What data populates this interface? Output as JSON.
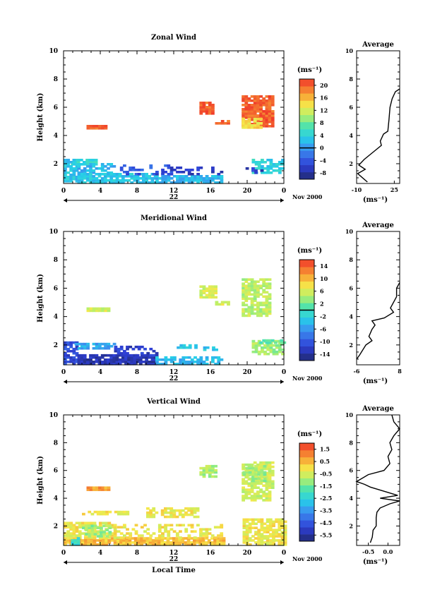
{
  "chart_data": [
    {
      "type": "heatmap",
      "title": "Zonal Wind",
      "ylabel": "Height (km)",
      "xlabel": "",
      "x_ticks": [
        "0",
        "4",
        "8",
        "12",
        "16",
        "20",
        "0"
      ],
      "y_ticks": [
        "2",
        "4",
        "6",
        "8",
        "10"
      ],
      "xlim": [
        0,
        24
      ],
      "ylim": [
        0.6,
        10
      ],
      "date_label": "22",
      "date_suffix": "Nov 2000",
      "colorbar": {
        "unit": "(ms⁻¹)",
        "ticks": [
          "20",
          "16",
          "12",
          "8",
          "4",
          "0",
          "-4",
          "-8"
        ],
        "min": -10,
        "max": 22,
        "contour": 0
      },
      "cells": [
        {
          "t0": 0.8,
          "t1": 3.6,
          "h0": 1.9,
          "h1": 2.3,
          "v": 5,
          "dens": 0.7
        },
        {
          "t0": 0.0,
          "t1": 1.5,
          "h0": 0.7,
          "h1": 2.2,
          "v": 3,
          "dens": 0.8
        },
        {
          "t0": 1.5,
          "t1": 5.5,
          "h0": 1.3,
          "h1": 1.9,
          "v": 2,
          "dens": 0.6
        },
        {
          "t0": 1.5,
          "t1": 10.0,
          "h0": 0.6,
          "h1": 1.3,
          "v": 3,
          "dens": 0.85
        },
        {
          "t0": 5.5,
          "t1": 12.0,
          "h0": 1.2,
          "h1": 1.8,
          "v": -4,
          "dens": 0.25
        },
        {
          "t0": 10.0,
          "t1": 17.2,
          "h0": 0.6,
          "h1": 1.2,
          "v": 2,
          "dens": 0.8
        },
        {
          "t0": 10.0,
          "t1": 17.2,
          "h0": 1.2,
          "h1": 1.7,
          "v": -6,
          "dens": 0.3
        },
        {
          "t0": 2.5,
          "t1": 4.6,
          "h0": 4.45,
          "h1": 4.75,
          "v": 20,
          "dens": 1
        },
        {
          "t0": 14.8,
          "t1": 16.3,
          "h0": 5.5,
          "h1": 6.4,
          "v": 20,
          "dens": 0.95
        },
        {
          "t0": 16.5,
          "t1": 17.8,
          "h0": 4.8,
          "h1": 5.1,
          "v": 20,
          "dens": 0.6
        },
        {
          "t0": 19.4,
          "t1": 22.8,
          "h0": 4.6,
          "h1": 6.8,
          "v": 20,
          "dens": 0.9
        },
        {
          "t0": 19.4,
          "t1": 21.5,
          "h0": 4.5,
          "h1": 5.2,
          "v": 14,
          "dens": 0.7
        },
        {
          "t0": 20.5,
          "t1": 24.0,
          "h0": 1.3,
          "h1": 2.2,
          "v": 4,
          "dens": 0.6
        },
        {
          "t0": 19.5,
          "t1": 21.5,
          "h0": 1.3,
          "h1": 1.7,
          "v": -6,
          "dens": 0.4
        }
      ],
      "average_profile": {
        "title": "Average",
        "xlabel": "(ms⁻¹)",
        "x_ticks": [
          "-10",
          "25"
        ],
        "y_ticks": [
          "2",
          "4",
          "6",
          "8",
          "10"
        ],
        "xlim": [
          -10,
          30
        ],
        "ylim": [
          0.6,
          10
        ],
        "points": [
          [
            0,
            0.7
          ],
          [
            -9,
            1.3
          ],
          [
            -2,
            1.6
          ],
          [
            -8,
            1.9
          ],
          [
            -3,
            2.3
          ],
          [
            5,
            2.8
          ],
          [
            13,
            3.3
          ],
          [
            12,
            3.6
          ],
          [
            15,
            4.1
          ],
          [
            19,
            4.3
          ],
          [
            20,
            5.1
          ],
          [
            21,
            6.0
          ],
          [
            23,
            6.6
          ],
          [
            26,
            7.1
          ],
          [
            30,
            7.3
          ]
        ]
      }
    },
    {
      "type": "heatmap",
      "title": "Meridional Wind",
      "ylabel": "Height (km)",
      "xlabel": "",
      "x_ticks": [
        "0",
        "4",
        "8",
        "12",
        "16",
        "20",
        "0"
      ],
      "y_ticks": [
        "2",
        "4",
        "6",
        "8",
        "10"
      ],
      "xlim": [
        0,
        24
      ],
      "ylim": [
        0.6,
        10
      ],
      "date_label": "22",
      "date_suffix": "Nov 2000",
      "colorbar": {
        "unit": "(ms⁻¹)",
        "ticks": [
          "14",
          "10",
          "6",
          "2",
          "-2",
          "-6",
          "-10",
          "-14"
        ],
        "min": -16,
        "max": 16,
        "contour": 0
      },
      "cells": [
        {
          "t0": 0.0,
          "t1": 1.5,
          "h0": 0.6,
          "h1": 2.1,
          "v": -11,
          "dens": 0.8
        },
        {
          "t0": 1.2,
          "t1": 5.5,
          "h0": 1.7,
          "h1": 2.1,
          "v": -5,
          "dens": 0.7
        },
        {
          "t0": 1.5,
          "t1": 10.0,
          "h0": 0.6,
          "h1": 1.3,
          "v": -13,
          "dens": 0.9
        },
        {
          "t0": 5.5,
          "t1": 10.0,
          "h0": 1.2,
          "h1": 1.8,
          "v": -12,
          "dens": 0.4
        },
        {
          "t0": 10.0,
          "t1": 17.2,
          "h0": 0.6,
          "h1": 1.1,
          "v": -4,
          "dens": 0.7
        },
        {
          "t0": 12.0,
          "t1": 16.5,
          "h0": 1.6,
          "h1": 2.0,
          "v": -3,
          "dens": 0.3
        },
        {
          "t0": 2.5,
          "t1": 4.8,
          "h0": 4.35,
          "h1": 4.6,
          "v": 6,
          "dens": 1
        },
        {
          "t0": 14.8,
          "t1": 16.5,
          "h0": 5.3,
          "h1": 6.2,
          "v": 6,
          "dens": 0.8
        },
        {
          "t0": 16.5,
          "t1": 17.8,
          "h0": 4.8,
          "h1": 5.0,
          "v": 6,
          "dens": 0.5
        },
        {
          "t0": 19.4,
          "t1": 22.6,
          "h0": 4.0,
          "h1": 6.6,
          "v": 5,
          "dens": 0.75
        },
        {
          "t0": 20.5,
          "t1": 24.0,
          "h0": 1.3,
          "h1": 2.3,
          "v": 4,
          "dens": 0.7
        },
        {
          "t0": 21.0,
          "t1": 24.0,
          "h0": 2.1,
          "h1": 2.4,
          "v": 1,
          "dens": 0.5
        }
      ],
      "average_profile": {
        "title": "Average",
        "xlabel": "(ms⁻¹)",
        "x_ticks": [
          "-6",
          "8"
        ],
        "y_ticks": [
          "2",
          "4",
          "6",
          "8",
          "10"
        ],
        "xlim": [
          -6,
          8
        ],
        "ylim": [
          0.6,
          10
        ],
        "points": [
          [
            -6,
            1.0
          ],
          [
            -5,
            1.3
          ],
          [
            -3,
            2.0
          ],
          [
            -1,
            2.3
          ],
          [
            -2,
            2.6
          ],
          [
            -1,
            3.1
          ],
          [
            0,
            3.4
          ],
          [
            -1,
            3.7
          ],
          [
            3,
            3.9
          ],
          [
            6,
            4.3
          ],
          [
            5,
            4.6
          ],
          [
            7,
            5.4
          ],
          [
            7,
            6.0
          ],
          [
            8,
            6.4
          ]
        ]
      }
    },
    {
      "type": "heatmap",
      "title": "Vertical Wind",
      "ylabel": "Height (km)",
      "xlabel": "Local Time",
      "x_ticks": [
        "0",
        "4",
        "8",
        "12",
        "16",
        "20",
        "0"
      ],
      "y_ticks": [
        "2",
        "4",
        "6",
        "8",
        "10"
      ],
      "xlim": [
        0,
        24
      ],
      "ylim": [
        0.6,
        10
      ],
      "date_label": "22",
      "date_suffix": "Nov 2000",
      "colorbar": {
        "unit": "(ms⁻¹)",
        "ticks": [
          "1.5",
          "0.5",
          "-0.5",
          "-1.5",
          "-2.5",
          "-3.5",
          "-4.5",
          "-5.5"
        ],
        "min": -6.5,
        "max": 2.0,
        "contour": null
      },
      "cells": [
        {
          "t0": 0.0,
          "t1": 17.3,
          "h0": 0.6,
          "h1": 1.1,
          "v": 0.3,
          "dens": 0.9
        },
        {
          "t0": 0.0,
          "t1": 5.5,
          "h0": 1.1,
          "h1": 2.2,
          "v": -0.3,
          "dens": 0.7
        },
        {
          "t0": 2.0,
          "t1": 5.0,
          "h0": 1.2,
          "h1": 2.0,
          "v": -1.3,
          "dens": 0.6
        },
        {
          "t0": 0.8,
          "t1": 1.5,
          "h0": 0.6,
          "h1": 1.1,
          "v": -2.5,
          "dens": 0.7
        },
        {
          "t0": 5.5,
          "t1": 17.3,
          "h0": 1.1,
          "h1": 2.0,
          "v": -0.3,
          "dens": 0.35
        },
        {
          "t0": 2.0,
          "t1": 7.0,
          "h0": 2.8,
          "h1": 3.0,
          "v": -0.3,
          "dens": 0.5
        },
        {
          "t0": 9.0,
          "t1": 14.5,
          "h0": 2.6,
          "h1": 3.3,
          "v": -0.3,
          "dens": 0.5
        },
        {
          "t0": 2.5,
          "t1": 4.8,
          "h0": 4.55,
          "h1": 4.8,
          "v": 0.7,
          "dens": 1
        },
        {
          "t0": 14.8,
          "t1": 16.5,
          "h0": 5.5,
          "h1": 6.3,
          "v": -1.1,
          "dens": 0.75
        },
        {
          "t0": 19.4,
          "t1": 22.8,
          "h0": 3.8,
          "h1": 6.6,
          "v": -0.7,
          "dens": 0.8
        },
        {
          "t0": 19.5,
          "t1": 22.0,
          "h0": 5.2,
          "h1": 6.4,
          "v": -1.2,
          "dens": 0.6
        },
        {
          "t0": 19.5,
          "t1": 24.0,
          "h0": 0.6,
          "h1": 2.4,
          "v": -0.3,
          "dens": 0.75
        }
      ],
      "average_profile": {
        "title": "Average",
        "xlabel": "(ms⁻¹)",
        "x_ticks": [
          "-0.5",
          "0.0"
        ],
        "y_ticks": [
          "2",
          "4",
          "6",
          "8",
          "10"
        ],
        "xlim": [
          -0.8,
          0.3
        ],
        "ylim": [
          0.6,
          10
        ],
        "points": [
          [
            -0.45,
            0.8
          ],
          [
            -0.4,
            1.2
          ],
          [
            -0.38,
            1.7
          ],
          [
            -0.3,
            2.0
          ],
          [
            -0.3,
            2.6
          ],
          [
            -0.28,
            3.0
          ],
          [
            -0.2,
            3.3
          ],
          [
            0.05,
            3.6
          ],
          [
            0.3,
            3.8
          ],
          [
            -0.2,
            4.0
          ],
          [
            0.25,
            4.2
          ],
          [
            -0.1,
            4.5
          ],
          [
            -0.45,
            4.8
          ],
          [
            -0.6,
            5.0
          ],
          [
            -0.8,
            5.2
          ],
          [
            -0.5,
            5.7
          ],
          [
            -0.1,
            6.0
          ],
          [
            0.05,
            6.5
          ],
          [
            0.0,
            7.0
          ],
          [
            0.1,
            7.5
          ],
          [
            0.05,
            8.0
          ],
          [
            0.15,
            8.5
          ],
          [
            0.3,
            9.0
          ],
          [
            0.15,
            9.5
          ],
          [
            0.1,
            10.0
          ]
        ]
      }
    }
  ]
}
